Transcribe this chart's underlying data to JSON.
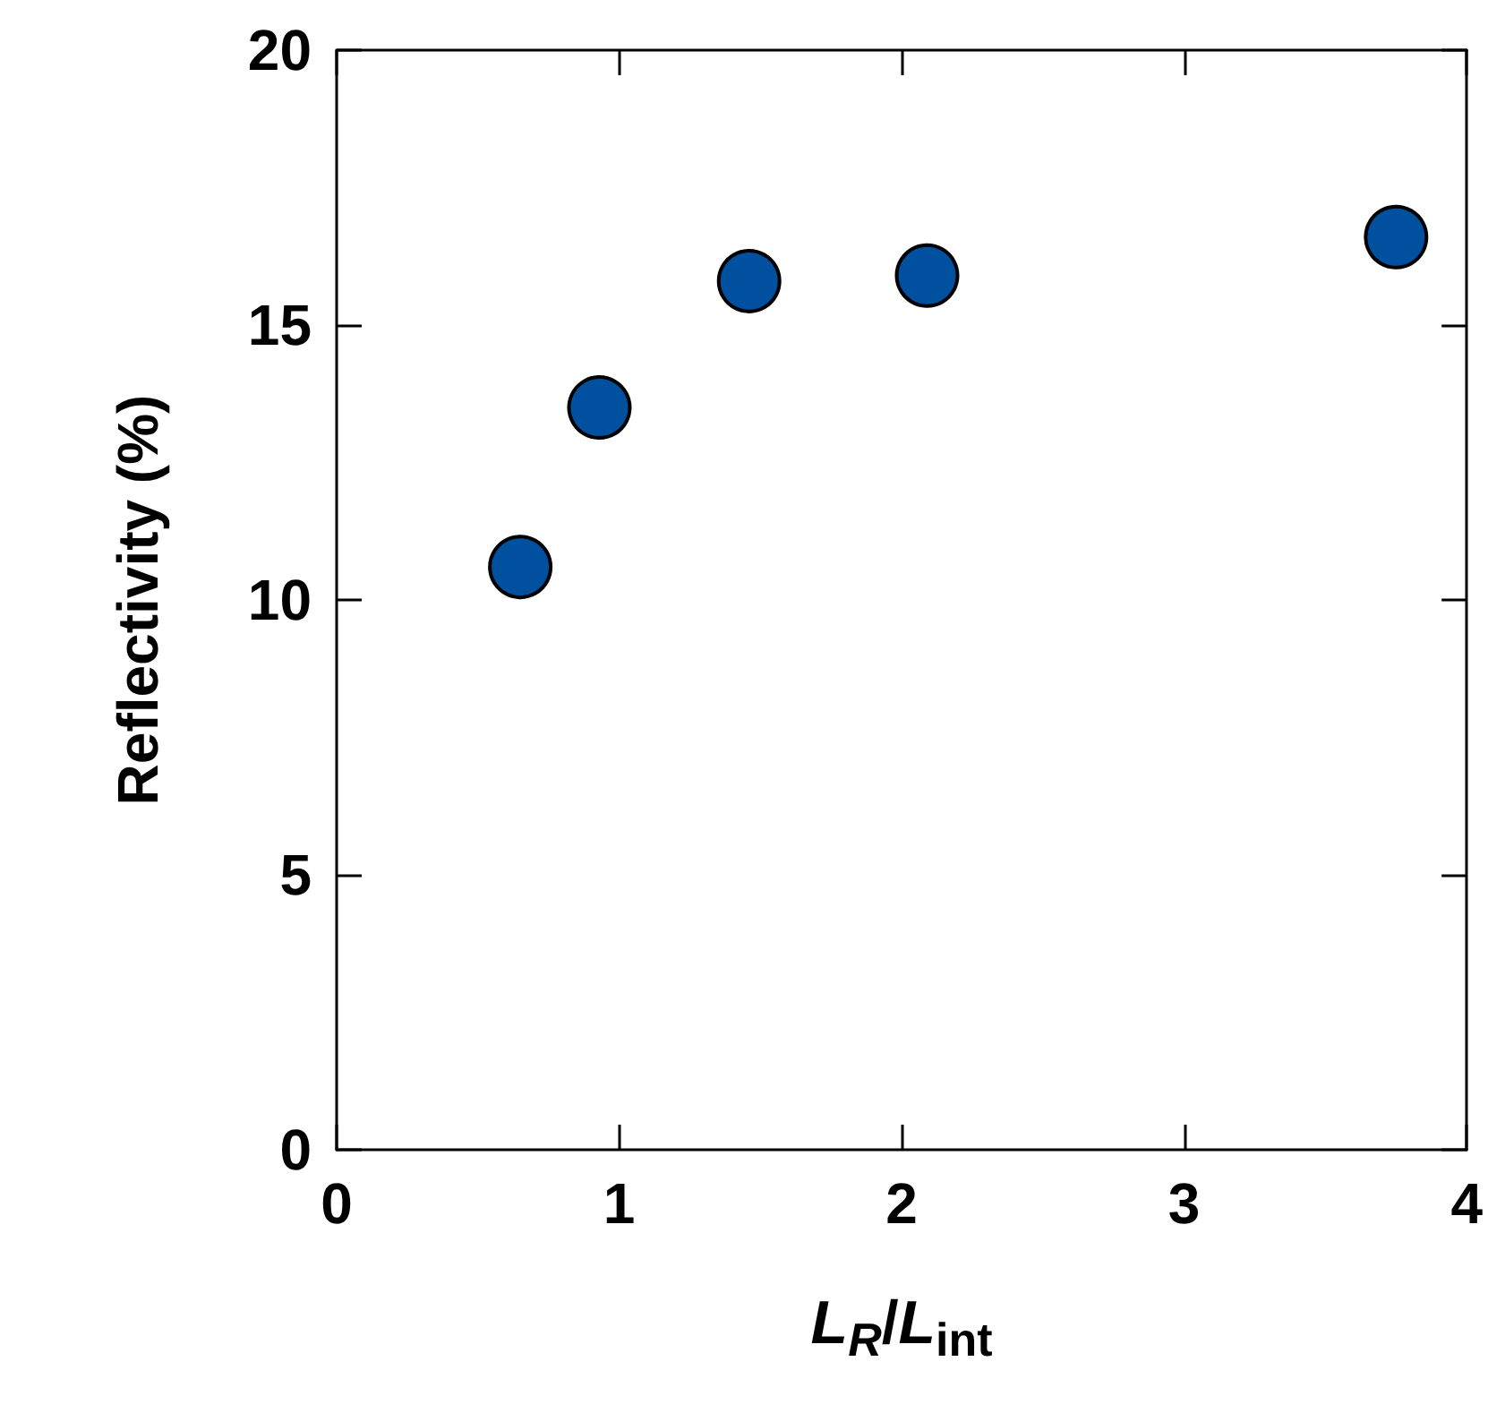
{
  "chart_data": {
    "type": "scatter",
    "xlabel": "L$_{R}$/L$_{int}$",
    "ylabel": "Reflectivity (%)",
    "x": [
      0.65,
      0.93,
      1.46,
      2.09,
      3.75
    ],
    "series": [
      {
        "color": "#0050a0",
        "values": [
          10.6,
          13.5,
          15.8,
          15.9,
          16.6
        ]
      }
    ],
    "xlim": [
      0,
      4
    ],
    "xticks": [
      0,
      1,
      2,
      3,
      4
    ],
    "ylim": [
      0,
      20
    ],
    "yticks": [
      0,
      5,
      10,
      15,
      20
    ],
    "marker": "circle",
    "grid": false
  }
}
